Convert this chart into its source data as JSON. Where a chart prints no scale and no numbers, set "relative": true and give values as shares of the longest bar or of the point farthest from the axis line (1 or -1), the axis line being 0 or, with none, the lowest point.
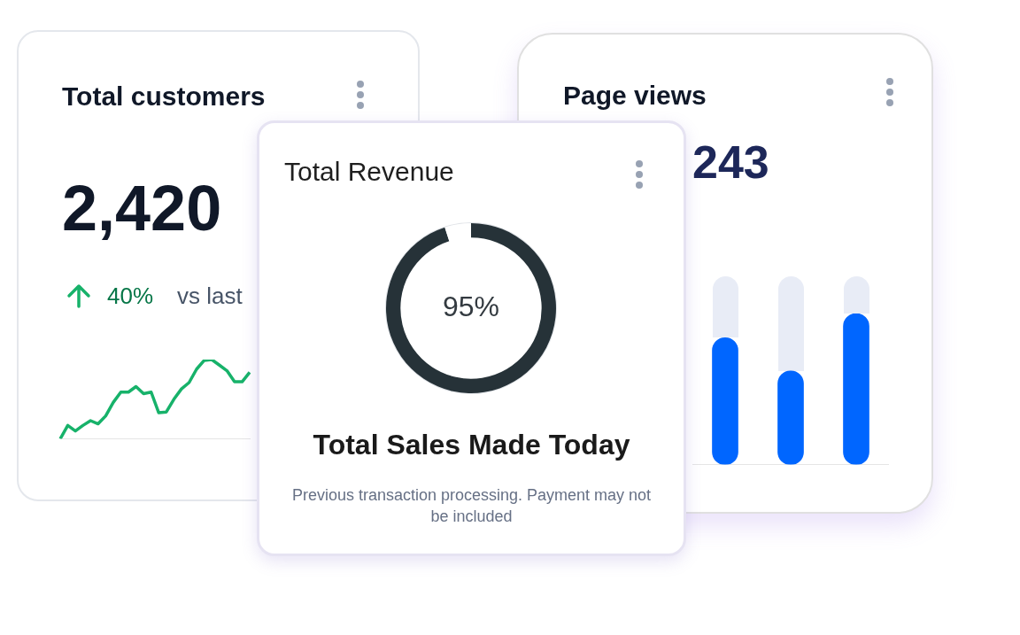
{
  "chart_data": [
    {
      "type": "line",
      "title": "Total customers",
      "annotations": [
        "2,420",
        "40%",
        "vs last"
      ],
      "relative": true,
      "color": "#17b26a",
      "categories": [
        null,
        null,
        null,
        null,
        null,
        null,
        null,
        null,
        null,
        null,
        null,
        null,
        null,
        null,
        null,
        null,
        null,
        null,
        null,
        null,
        null,
        null,
        null,
        null,
        null,
        null
      ],
      "values": [
        0,
        0.17,
        0.1,
        0.17,
        0.23,
        0.19,
        0.29,
        0.46,
        0.59,
        0.59,
        0.66,
        0.57,
        0.59,
        0.33,
        0.34,
        0.5,
        0.63,
        0.71,
        0.88,
        0.99,
        1,
        0.93,
        0.86,
        0.72,
        0.72,
        0.84
      ]
    },
    {
      "type": "donut",
      "title": "Total Revenue",
      "subtitle": "Total Sales Made Today",
      "annotations": [
        "Previous transaction processing. Payment may not  be included"
      ],
      "categories": [
        null,
        null
      ],
      "values": [
        95,
        5
      ],
      "colors": [
        "#263238",
        "#ffffff"
      ],
      "value_labels": [
        "95%",
        null
      ]
    },
    {
      "type": "bar",
      "title": "Page views",
      "annotations": [
        "243"
      ],
      "relative": true,
      "color": "#0066ff",
      "categories": [
        null,
        null,
        null
      ],
      "values": [
        0.84,
        0.62,
        1
      ]
    }
  ]
}
